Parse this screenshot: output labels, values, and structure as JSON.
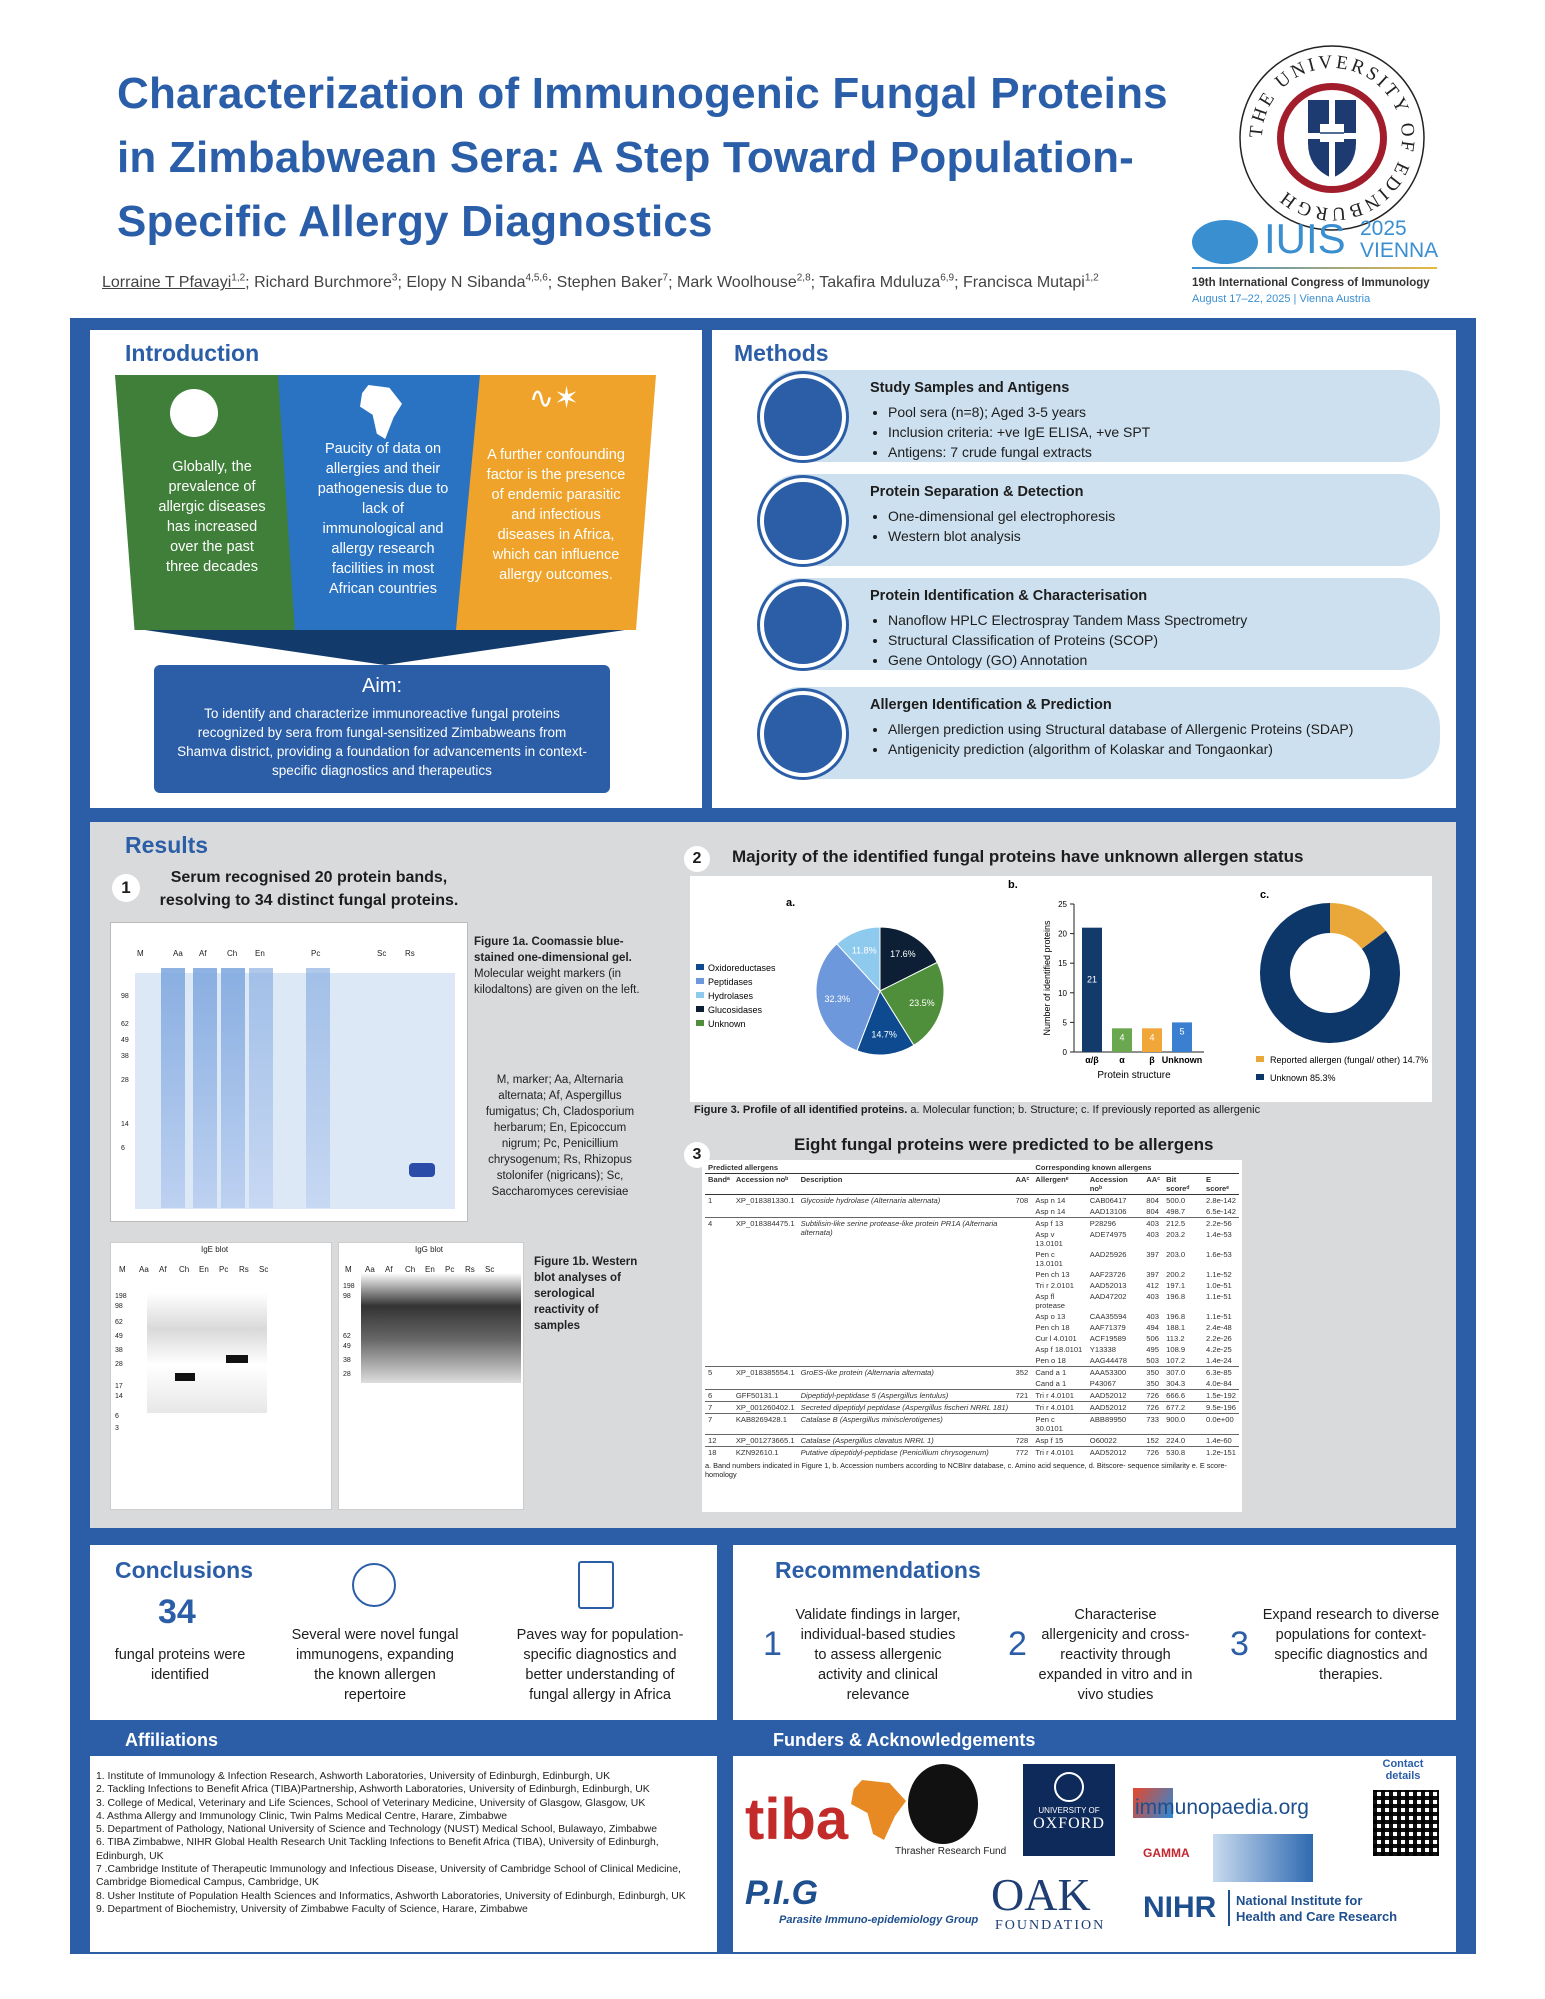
{
  "title": "Characterization of Immunogenic Fungal Proteins in Zimbabwean Sera: A Step Toward Population-Specific Allergy Diagnostics",
  "authors": [
    {
      "name": "Lorraine T Pfavayi",
      "sup": "1,2"
    },
    {
      "name": "Richard Burchmore",
      "sup": "3"
    },
    {
      "name": "Elopy N Sibanda",
      "sup": "4,5,6"
    },
    {
      "name": "Stephen Baker",
      "sup": "7"
    },
    {
      "name": "Mark Woolhouse",
      "sup": "2,8"
    },
    {
      "name": "Takafira Mduluza",
      "sup": "6,9"
    },
    {
      "name": "Francisca Mutapi",
      "sup": "1,2"
    }
  ],
  "logos": {
    "university_seal_text": "THE UNIVERSITY OF EDINBURGH",
    "iuis": "IUIS",
    "iuis_year": "2025",
    "iuis_city": "VIENNA",
    "congress": "19th International Congress of Immunology",
    "congress_dates": "August 17–22, 2025 | Vienna Austria"
  },
  "introduction": {
    "heading": "Introduction",
    "cards": [
      {
        "text": "Globally, the prevalence of allergic diseases has increased over the past three decades",
        "color": "#3f7f3a",
        "icon": "globe-icon"
      },
      {
        "text": "Paucity of data on allergies and their pathogenesis due to lack of immunological and allergy research facilities in most African countries",
        "color": "#2a73c3",
        "icon": "africa-map-icon"
      },
      {
        "text": "A further confounding factor is the presence of endemic parasitic and infectious diseases in Africa, which can influence allergy outcomes.",
        "color": "#f0a32a",
        "icon": "parasite-icon"
      }
    ],
    "aim_title": "Aim:",
    "aim_text": "To identify and characterize immunoreactive fungal proteins recognized by sera from fungal-sensitized Zimbabweans from Shamva district, providing a foundation for advancements in context-specific diagnostics and therapeutics"
  },
  "methods": {
    "heading": "Methods",
    "rows": [
      {
        "title": "Study Samples and Antigens",
        "items": [
          "Pool sera (n=8); Aged 3-5 years",
          "Inclusion criteria: +ve IgE ELISA, +ve SPT",
          "Antigens: 7 crude fungal extracts"
        ],
        "icon": "test-tubes-icon"
      },
      {
        "title": "Protein Separation & Detection",
        "items": [
          "One-dimensional gel electrophoresis",
          "Western blot analysis"
        ],
        "icon": "gel-apparatus-icon"
      },
      {
        "title": "Protein Identification &  Characterisation",
        "items": [
          "Nanoflow HPLC Electrospray Tandem Mass Spectrometry",
          "Structural Classification of Proteins (SCOP)",
          "Gene Ontology (GO) Annotation"
        ],
        "icon": "spectrum-icon"
      },
      {
        "title": "Allergen Identification & Prediction",
        "items": [
          "Allergen prediction using Structural database of Allergenic Proteins (SDAP)",
          "Antigenicity prediction (algorithm of Kolaskar and Tongaonkar)"
        ],
        "icon": "monitor-analysis-icon"
      }
    ]
  },
  "results": {
    "heading": "Results",
    "r1_num": "1",
    "r1_title": "Serum recognised 20 protein bands, resolving to 34 distinct fungal proteins.",
    "gel_lanes": [
      "M",
      "Aa",
      "Af",
      "Ch",
      "En",
      "Pc",
      "Sc",
      "Rs"
    ],
    "gel_markers": [
      "98",
      "62",
      "49",
      "38",
      "28",
      "14",
      "6"
    ],
    "gel_band_numbers": [
      "1",
      "2",
      "3",
      "4",
      "5",
      "7",
      "8",
      "9",
      "10",
      "11",
      "12",
      "13",
      "14",
      "15",
      "16",
      "17",
      "18",
      "19",
      "20"
    ],
    "fig1a_title": "Figure 1a. Coomassie blue-stained one-dimensional gel.",
    "fig1a_text": " Molecular weight markers (in kilodaltons) are given on the left.",
    "fig1_legend": "M, marker; Aa, Alternaria alternata; Af, Aspergillus fumigatus; Ch, Cladosporium herbarum; En, Epicoccum nigrum; Pc, Penicillium chrysogenum; Rs, Rhizopus stolonifer (nigricans); Sc, Saccharomyces cerevisiae",
    "blot_ige_label": "IgE blot",
    "blot_igg_label": "IgG blot",
    "blot_lanes": [
      "M",
      "Aa",
      "Af",
      "Ch",
      "En",
      "Pc",
      "Rs",
      "Sc"
    ],
    "ige_markers": [
      "198",
      "98",
      "62",
      "49",
      "38",
      "28",
      "17",
      "14",
      "6",
      "3"
    ],
    "igg_markers": [
      "198",
      "98",
      "62",
      "49",
      "38",
      "28"
    ],
    "fig1b": "Figure 1b. Western blot analyses of serological reactivity of samples",
    "r2_num": "2",
    "r2_title": "Majority of the identified fungal proteins have unknown allergen status",
    "fig3_caption_bold": "Figure 3. Profile of all identified proteins.",
    "fig3_caption": " a. Molecular function; b. Structure; c. If previously reported as allergenic",
    "r3_num": "3",
    "r3_title": "Eight fungal proteins were predicted to be allergens",
    "table_group_left": "Predicted allergens",
    "table_group_right": "Corresponding known allergens",
    "table_headers": [
      "Bandᵃ",
      "Accession noᵇ",
      "Description",
      "AAᶜ",
      "Allergenᵉ",
      "Accession noᵇ",
      "AAᶜ",
      "Bit scoreᵈ",
      "E scoreᵉ"
    ],
    "table_rows": [
      {
        "band": "1",
        "acc": "XP_018381330.1",
        "desc": "Glycoside hydrolase (Alternaria alternata)",
        "aa": "708",
        "allergens": [
          "Asp n 14",
          "Asp n 14"
        ],
        "acc2": [
          "CAB06417",
          "AAD13106"
        ],
        "aa2": [
          "804",
          "804"
        ],
        "bit": [
          "500.0",
          "498.7"
        ],
        "e": [
          "2.8e-142",
          "6.5e-142"
        ]
      },
      {
        "band": "4",
        "acc": "XP_018384475.1",
        "desc": "Subtilisin-like serine protease-like protein PR1A (Alternaria alternata)",
        "aa": "",
        "allergens": [
          "Asp f 13",
          "Asp v 13.0101",
          "Pen c 13.0101",
          "Pen ch 13",
          "Tri r 2.0101",
          "Asp fl protease",
          "Asp o 13",
          "Pen ch 18",
          "Cur l 4.0101",
          "Asp f 18.0101",
          "Pen o 18"
        ],
        "acc2": [
          "P28296",
          "ADE74975",
          "AAD25926",
          "AAF23726",
          "AAD52013",
          "AAD47202",
          "CAA35594",
          "AAF71379",
          "ACF19589",
          "Y13338",
          "AAG44478"
        ],
        "aa2": [
          "403",
          "403",
          "397",
          "397",
          "412",
          "403",
          "403",
          "494",
          "506",
          "495",
          "503"
        ],
        "bit": [
          "212.5",
          "203.2",
          "203.0",
          "200.2",
          "197.1",
          "196.8",
          "196.8",
          "188.1",
          "113.2",
          "108.9",
          "107.2"
        ],
        "e": [
          "2.2e-56",
          "1.4e-53",
          "1.6e-53",
          "1.1e-52",
          "1.0e-51",
          "1.1e-51",
          "1.1e-51",
          "2.4e-48",
          "2.2e-26",
          "4.2e-25",
          "1.4e-24"
        ]
      },
      {
        "band": "5",
        "acc": "XP_018385554.1",
        "desc": "GroES-like protein (Alternaria alternata)",
        "aa": "352",
        "allergens": [
          "Cand a 1",
          "Cand a 1"
        ],
        "acc2": [
          "AAA53300",
          "P43067"
        ],
        "aa2": [
          "350",
          "350"
        ],
        "bit": [
          "307.0",
          "304.3"
        ],
        "e": [
          "6.3e-85",
          "4.0e-84"
        ]
      },
      {
        "band": "6",
        "acc": "GFF50131.1",
        "desc": "Dipeptidyl-peptidase 5 (Aspergillus lentulus)",
        "aa": "721",
        "allergens": [
          "Tri r 4.0101"
        ],
        "acc2": [
          "AAD52012"
        ],
        "aa2": [
          "726"
        ],
        "bit": [
          "666.6"
        ],
        "e": [
          "1.5e-192"
        ]
      },
      {
        "band": "7",
        "acc": "XP_001260402.1",
        "desc": "Secreted dipeptidyl peptidase (Aspergillus fischeri NRRL 181)",
        "aa": "",
        "allergens": [
          "Tri r 4.0101"
        ],
        "acc2": [
          "AAD52012"
        ],
        "aa2": [
          "726"
        ],
        "bit": [
          "677.2"
        ],
        "e": [
          "9.5e-196"
        ]
      },
      {
        "band": "7",
        "acc": "KAB8269428.1",
        "desc": "Catalase B (Aspergillus minisclerotigenes)",
        "aa": "",
        "allergens": [
          "Pen c 30.0101"
        ],
        "acc2": [
          "ABB89950"
        ],
        "aa2": [
          "733"
        ],
        "bit": [
          "900.0"
        ],
        "e": [
          "0.0e+00"
        ]
      },
      {
        "band": "12",
        "acc": "XP_001273665.1",
        "desc": "Catalase (Aspergillus clavatus NRRL 1)",
        "aa": "728",
        "allergens": [
          "Asp f 15"
        ],
        "acc2": [
          "O60022"
        ],
        "aa2": [
          "152"
        ],
        "bit": [
          "224.0"
        ],
        "e": [
          "1.4e-60"
        ]
      },
      {
        "band": "18",
        "acc": "KZN92610.1",
        "desc": "Putative dipeptidyl-peptidase (Penicillium chrysogenum)",
        "aa": "772",
        "allergens": [
          "Tri r 4.0101"
        ],
        "acc2": [
          "AAD52012"
        ],
        "aa2": [
          "726"
        ],
        "bit": [
          "530.8"
        ],
        "e": [
          "1.2e-151"
        ]
      }
    ],
    "table_footnote": "a. Band numbers indicated in Figure 1, b. Accession numbers according to NCBInr database, c. Amino acid sequence, d. Bitscore- sequence similarity e. E score- homology"
  },
  "chart_data": [
    {
      "type": "pie",
      "label": "a.",
      "categories": [
        "Oxidoreductases",
        "Peptidases",
        "Hydrolases",
        "Glucosidases",
        "Unknown"
      ],
      "values": [
        14.7,
        32.3,
        11.8,
        17.6,
        23.5
      ],
      "value_labels": [
        "14.7%",
        "32.3%",
        "11.8%",
        "17.6%",
        "23.5%"
      ],
      "colors": [
        "#0d4a8f",
        "#6e98dc",
        "#8ec9ee",
        "#0c1f35",
        "#4f8f3c"
      ],
      "legend": "left"
    },
    {
      "type": "bar",
      "label": "b.",
      "categories": [
        "α/β",
        "α",
        "β",
        "Unknown"
      ],
      "values": [
        21,
        4,
        4,
        5
      ],
      "colors": [
        "#123a6a",
        "#6aa84f",
        "#f1a63a",
        "#3b7fd0"
      ],
      "xlabel": "Protein structure",
      "ylabel": "Number of identified proteins",
      "ylim": [
        0,
        25
      ],
      "yticks": [
        0,
        5,
        10,
        15,
        20,
        25
      ]
    },
    {
      "type": "pie",
      "label": "c.",
      "categories": [
        "Reported allergen (fungal/ other) 14.7%",
        "Unknown 85.3%"
      ],
      "values": [
        14.7,
        85.3
      ],
      "colors": [
        "#eaa83a",
        "#0e3769"
      ],
      "legend": "bottom"
    }
  ],
  "conclusions": {
    "heading": "Conclusions",
    "big_number": "34",
    "c1": "fungal proteins were identified",
    "c2": "Several were novel fungal immunogens, expanding the known allergen repertoire",
    "c3": "Paves way for population-specific diagnostics and better understanding of fungal allergy in Africa"
  },
  "recommendations": {
    "heading": "Recommendations",
    "items": [
      {
        "n": "1",
        "text": "Validate findings in larger, individual-based studies to assess allergenic activity and clinical relevance"
      },
      {
        "n": "2",
        "text": "Characterise allergenicity and cross-reactivity through expanded in vitro and in vivo studies"
      },
      {
        "n": "3",
        "text": "Expand research to diverse populations for context-specific diagnostics and therapies."
      }
    ]
  },
  "affiliations": {
    "heading": "Affiliations",
    "items": [
      "1. Institute of Immunology & Infection Research, Ashworth Laboratories, University of Edinburgh, Edinburgh, UK",
      "2. Tackling Infections to Benefit Africa (TIBA)Partnership, Ashworth Laboratories, University of Edinburgh, Edinburgh, UK",
      "3. College of Medical, Veterinary and Life Sciences, School of Veterinary Medicine, University of Glasgow, Glasgow, UK",
      "4. Asthma Allergy and Immunology Clinic, Twin Palms Medical Centre, Harare, Zimbabwe",
      "5. Department of Pathology, National University of Science and Technology (NUST) Medical School, Bulawayo, Zimbabwe",
      "6. TIBA Zimbabwe, NIHR Global Health Research Unit Tackling Infections to Benefit Africa (TIBA), University of Edinburgh, Edinburgh, UK",
      "7 .Cambridge Institute of Therapeutic Immunology and Infectious Disease, University of Cambridge School of Clinical Medicine, Cambridge Biomedical Campus, Cambridge, UK",
      "8. Usher Institute of Population Health Sciences and Informatics, Ashworth Laboratories, University of Edinburgh, Edinburgh, UK",
      "9. Department of Biochemistry, University of Zimbabwe Faculty of Science, Harare, Zimbabwe"
    ]
  },
  "funders": {
    "heading": "Funders & Acknowledgements",
    "tiba": "tiba",
    "thrasher": "Thrasher Research Fund",
    "oxford_small": "UNIVERSITY OF",
    "oxford": "OXFORD",
    "immunopaedia": "immunopaedia.org",
    "gamma": "GAMMA",
    "pig": "P.I.G",
    "pig_sub": "Parasite Immuno-epidemiology Group",
    "oak": "OAK",
    "oak_sub": "FOUNDATION",
    "nihr": "NIHR",
    "nihr_line1": "National Institute for",
    "nihr_line2": "Health and Care Research",
    "contact": "Contact details"
  }
}
